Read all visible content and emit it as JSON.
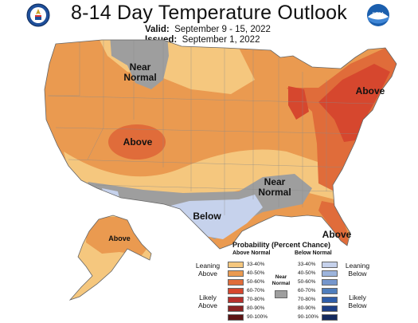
{
  "title": "8-14 Day Temperature Outlook",
  "valid_label": "Valid:",
  "valid_value": "September 9 - 15, 2022",
  "issued_label": "Issued:",
  "issued_value": "September 1, 2022",
  "icons": {
    "left_logo": "commerce-seal-icon",
    "right_logo": "noaa-logo-icon"
  },
  "regions": {
    "near_normal_north": "Near\nNormal",
    "near_normal_north_l1": "Near",
    "near_normal_north_l2": "Normal",
    "above_center": "Above",
    "above_northeast": "Above",
    "near_normal_south_l1": "Near",
    "near_normal_south_l2": "Normal",
    "below_south": "Below",
    "above_florida": "Above",
    "above_alaska": "Above"
  },
  "colors": {
    "above_33_40": "#f5c77e",
    "above_40_50": "#ea9a50",
    "above_50_60": "#e06c3a",
    "above_60_70": "#d6472e",
    "above_70_80": "#b5302c",
    "above_80_90": "#8a2222",
    "above_90_100": "#5c1515",
    "below_33_40": "#c6d2ec",
    "below_40_50": "#9db4dc",
    "below_50_60": "#7596cc",
    "below_60_70": "#4f7ebd",
    "below_70_80": "#2f5da8",
    "below_80_90": "#1d3f86",
    "below_90_100": "#142a5e",
    "near_normal": "#9e9e9e"
  },
  "legend": {
    "title": "Probability (Percent Chance)",
    "above_header": "Above Normal",
    "below_header": "Below Normal",
    "near_normal_l1": "Near",
    "near_normal_l2": "Normal",
    "leaning_above_l1": "Leaning",
    "leaning_above_l2": "Above",
    "likely_above_l1": "Likely",
    "likely_above_l2": "Above",
    "leaning_below_l1": "Leaning",
    "leaning_below_l2": "Below",
    "likely_below_l1": "Likely",
    "likely_below_l2": "Below",
    "ranges": [
      "33-40%",
      "40-50%",
      "50-60%",
      "60-70%",
      "70-80%",
      "80-90%",
      "90-100%"
    ]
  }
}
